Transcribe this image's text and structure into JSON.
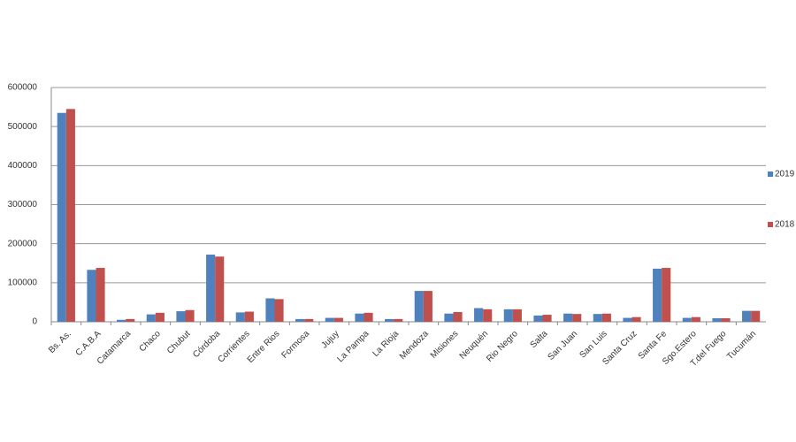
{
  "chart_data": {
    "type": "bar",
    "categories": [
      "Bs. As.",
      "C.A.B.A",
      "Catamarca",
      "Chaco",
      "Chubut",
      "Córdoba",
      "Corrientes",
      "Entre Rios",
      "Formosa",
      "Jujuy",
      "La Pampa",
      "La Rioja",
      "Mendoza",
      "Misiones",
      "Neuquén",
      "Rio Negro",
      "Salta",
      "San Juan",
      "San Luis",
      "Santa Cruz",
      "Santa Fe",
      "Sgo.Estero",
      "T.del Fuego",
      "Tucumán"
    ],
    "series": [
      {
        "name": "2019",
        "color": "#4f81bd",
        "values": [
          535000,
          133000,
          5000,
          19000,
          27000,
          172000,
          24000,
          60000,
          7000,
          10000,
          21000,
          7000,
          79000,
          21000,
          35000,
          32000,
          16000,
          21000,
          20000,
          10000,
          136000,
          10000,
          9000,
          28000
        ]
      },
      {
        "name": "2018",
        "color": "#c0504d",
        "values": [
          545000,
          138000,
          7000,
          23000,
          30000,
          167000,
          26000,
          58000,
          7000,
          10000,
          23000,
          7000,
          79000,
          25000,
          32000,
          32000,
          18000,
          20000,
          21000,
          12000,
          138000,
          12000,
          9000,
          28000
        ]
      }
    ],
    "ylim": [
      0,
      600000
    ],
    "yticks": [
      0,
      100000,
      200000,
      300000,
      400000,
      500000,
      600000
    ],
    "grid": true,
    "legend": "right"
  }
}
